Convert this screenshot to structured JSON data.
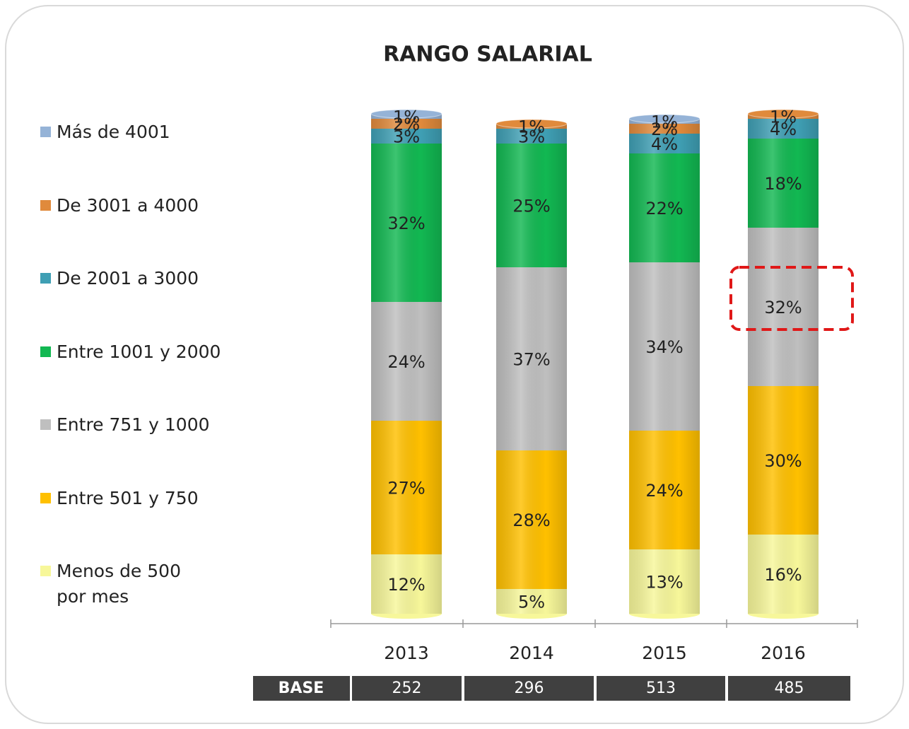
{
  "chart_data": {
    "type": "stacked_bar",
    "title": "RANGO SALARIAL",
    "categories": [
      "2013",
      "2014",
      "2015",
      "2016"
    ],
    "ylim": [
      0,
      100
    ],
    "series": [
      {
        "name": "Menos de 500 por mes",
        "color": "#f7f79a",
        "values": [
          12,
          5,
          13,
          16
        ],
        "value_labels": [
          "12%",
          "5%",
          "13%",
          "16%"
        ]
      },
      {
        "name": "Entre 501 y 750",
        "color": "#ffc000",
        "values": [
          27,
          28,
          24,
          30
        ],
        "value_labels": [
          "27%",
          "28%",
          "24%",
          "30%"
        ]
      },
      {
        "name": "Entre 751 y 1000",
        "color": "#bfbfbf",
        "values": [
          24,
          37,
          34,
          32
        ],
        "value_labels": [
          "24%",
          "37%",
          "34%",
          "32%"
        ]
      },
      {
        "name": "Entre 1001 y 2000",
        "color": "#12b852",
        "values": [
          32,
          25,
          22,
          18
        ],
        "value_labels": [
          "32%",
          "25%",
          "22%",
          "18%"
        ]
      },
      {
        "name": "De 2001 a 3000",
        "color": "#3f9fb4",
        "values": [
          3,
          3,
          4,
          4
        ],
        "value_labels": [
          "3%",
          "3%",
          "4%",
          "4%"
        ]
      },
      {
        "name": "De 3001 a 4000",
        "color": "#e08a3c",
        "values": [
          2,
          1,
          2,
          1
        ],
        "value_labels": [
          "2%",
          "1%",
          "2%",
          "1%"
        ]
      },
      {
        "name": "Más de 4001",
        "color": "#95b3d7",
        "values": [
          1,
          null,
          1,
          null
        ],
        "value_labels": [
          "1%",
          null,
          "1%",
          null
        ]
      }
    ],
    "base": {
      "label": "BASE",
      "values": [
        252,
        296,
        513,
        485
      ]
    }
  }
}
